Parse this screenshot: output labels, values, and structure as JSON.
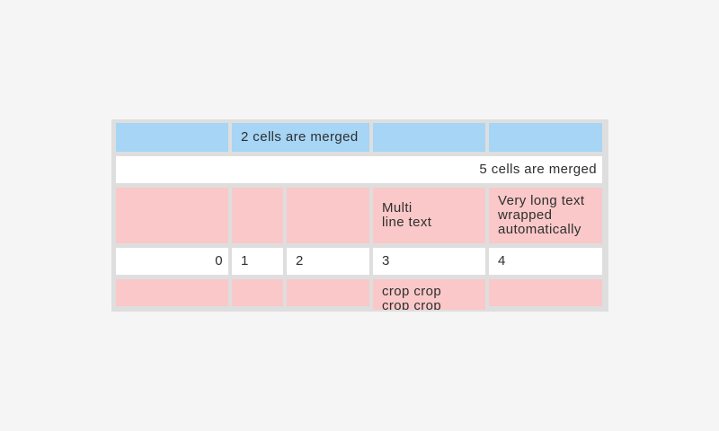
{
  "colors": {
    "page_bg": "#f5f5f5",
    "table_bg": "#dedede",
    "cell_blue": "#a6d5f5",
    "cell_white": "#ffffff",
    "cell_pink": "#fac8c8",
    "text": "#2f2f2f"
  },
  "table": {
    "rows": {
      "r1": {
        "merged_label": "2 cells are merged"
      },
      "r2": {
        "merged_label": "5 cells are merged"
      },
      "r3": {
        "c4": "Multi\nline text",
        "c5": "Very long text wrapped automatically"
      },
      "r4": {
        "c1": "0",
        "c2": "1",
        "c3": "2",
        "c4": "3",
        "c5": "4"
      },
      "r5": {
        "c4": "crop crop crop crop"
      }
    }
  }
}
